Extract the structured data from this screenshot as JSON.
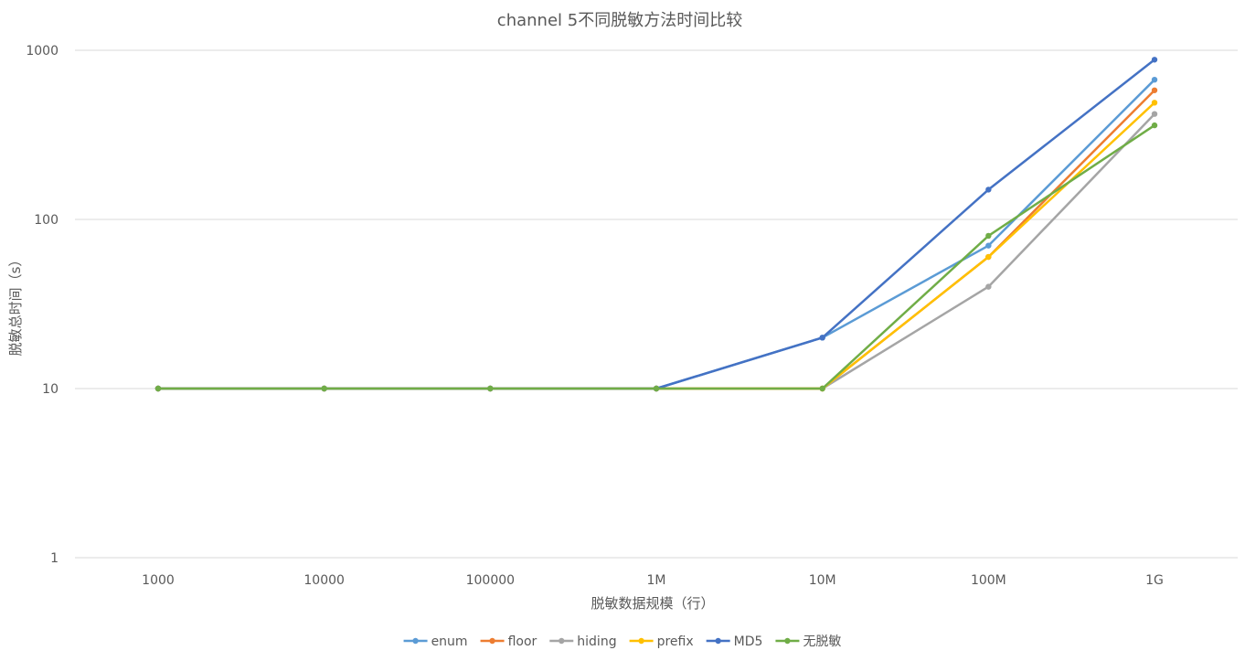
{
  "chart_data": {
    "type": "line",
    "title": "channel 5不同脱敏方法时间比较",
    "xlabel": "脱敏数据规模（行）",
    "ylabel": "脱敏总时间（s）",
    "y_scale": "log",
    "ylim": [
      1,
      1000
    ],
    "y_ticks": [
      "1",
      "10",
      "100",
      "1000"
    ],
    "categories": [
      "1000",
      "10000",
      "100000",
      "1M",
      "10M",
      "100M",
      "1G"
    ],
    "grid": "horizontal",
    "legend_position": "bottom",
    "series": [
      {
        "name": "enum",
        "color": "#5B9BD5",
        "values": [
          10,
          10,
          10,
          10,
          20,
          70,
          670
        ]
      },
      {
        "name": "floor",
        "color": "#ED7D31",
        "values": [
          10,
          10,
          10,
          10,
          10,
          60,
          580
        ]
      },
      {
        "name": "hiding",
        "color": "#A5A5A5",
        "values": [
          10,
          10,
          10,
          10,
          10,
          40,
          420
        ]
      },
      {
        "name": "prefix",
        "color": "#FFC000",
        "values": [
          10,
          10,
          10,
          10,
          10,
          60,
          490
        ]
      },
      {
        "name": "MD5",
        "color": "#4472C4",
        "values": [
          10,
          10,
          10,
          10,
          20,
          150,
          880
        ]
      },
      {
        "name": "无脱敏",
        "color": "#70AD47",
        "values": [
          10,
          10,
          10,
          10,
          10,
          80,
          360
        ]
      }
    ]
  }
}
